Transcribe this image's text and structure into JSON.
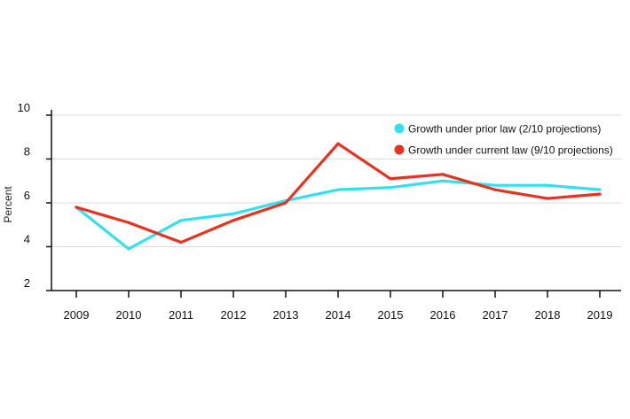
{
  "chart_data": {
    "type": "line",
    "title": "",
    "xlabel": "",
    "ylabel": "Percent",
    "x": [
      "2009",
      "2010",
      "2011",
      "2012",
      "2013",
      "2014",
      "2015",
      "2016",
      "2017",
      "2018",
      "2019"
    ],
    "ylim": [
      2,
      10
    ],
    "yticks": [
      "2",
      "4",
      "6",
      "8",
      "10"
    ],
    "grid": true,
    "legend_position": "top-right",
    "series": [
      {
        "name": "Growth under prior law (2/10 projections)",
        "color": "#33e0ee",
        "values": [
          5.8,
          3.9,
          5.2,
          5.5,
          6.1,
          6.6,
          6.7,
          7.0,
          6.8,
          6.8,
          6.6
        ]
      },
      {
        "name": "Growth under current law (9/10 projections)",
        "color": "#e8321e",
        "values": [
          5.8,
          5.1,
          4.2,
          5.2,
          6.0,
          8.7,
          7.1,
          7.3,
          6.6,
          6.2,
          6.4
        ]
      }
    ]
  }
}
